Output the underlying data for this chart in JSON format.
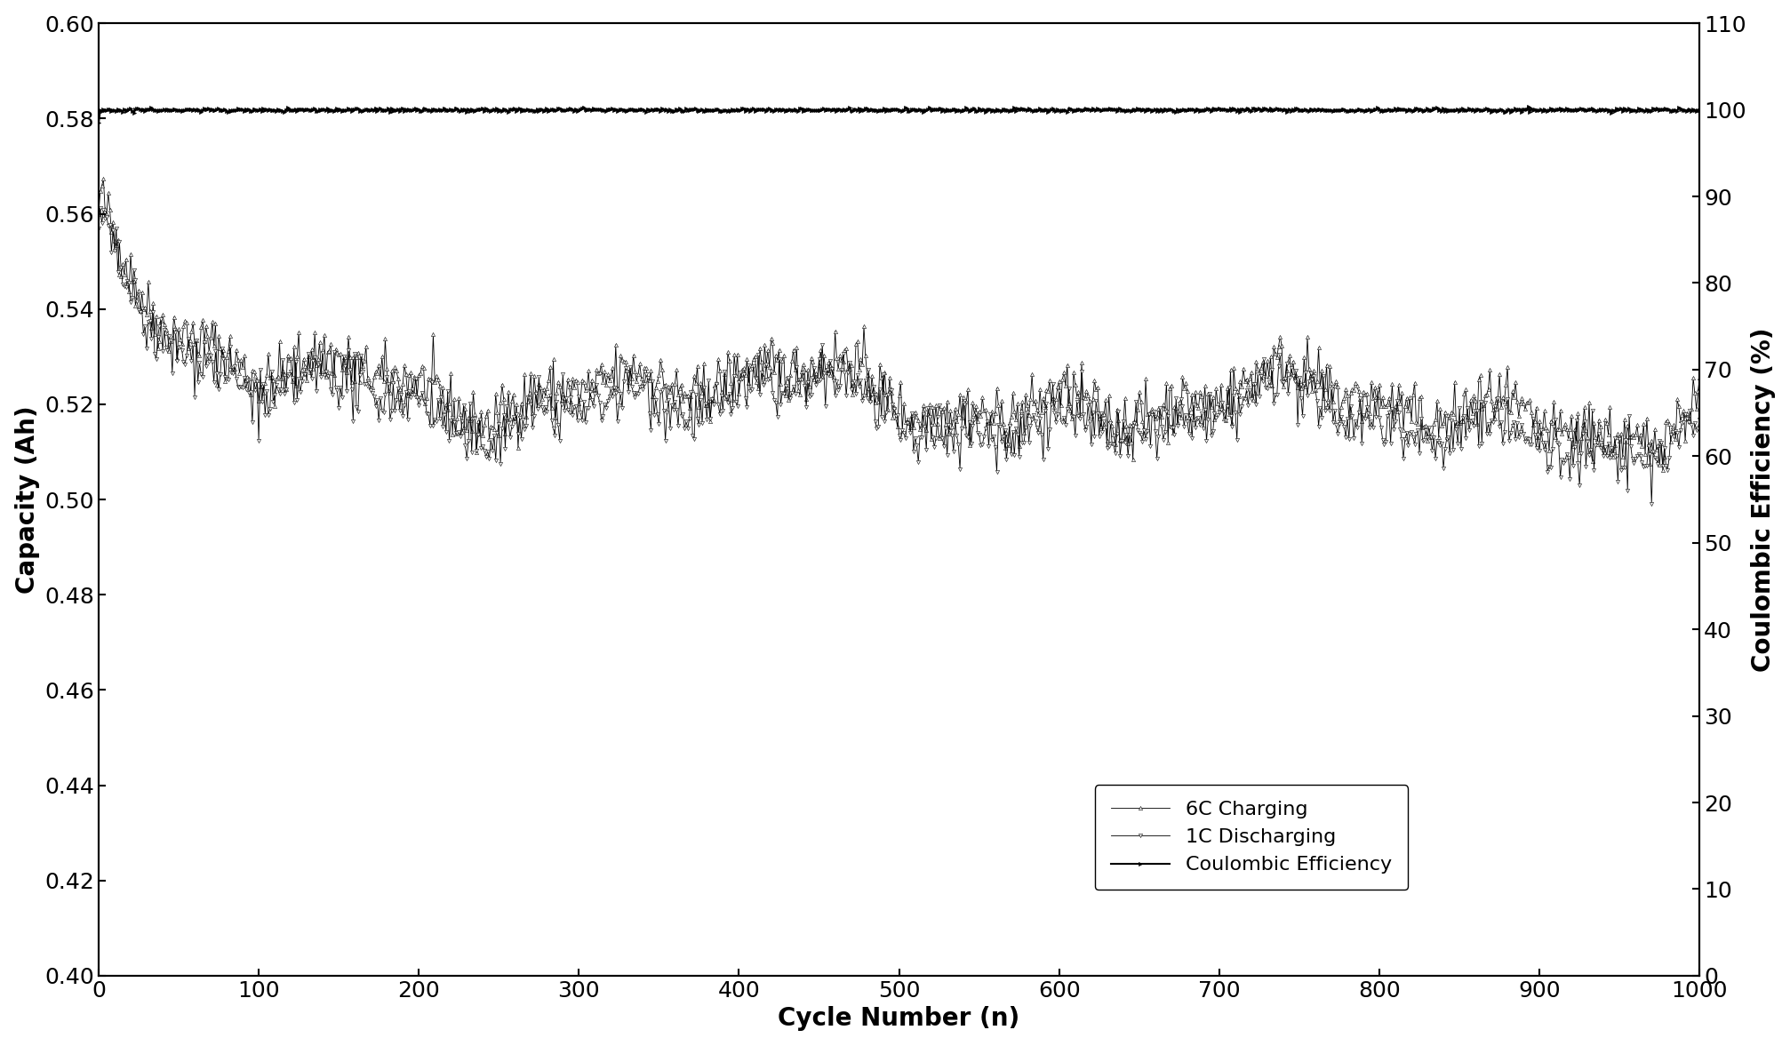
{
  "xlabel": "Cycle Number (n)",
  "ylabel_left": "Capacity (Ah)",
  "ylabel_right": "Coulombic Efficiency (%)",
  "legend_labels": [
    "6C Charging",
    "1C Discharging",
    "Coulombic Efficiency"
  ],
  "xlim": [
    0,
    1000
  ],
  "ylim_left": [
    0.4,
    0.6
  ],
  "ylim_right": [
    0,
    110
  ],
  "xticks": [
    0,
    100,
    200,
    300,
    400,
    500,
    600,
    700,
    800,
    900,
    1000
  ],
  "yticks_left": [
    0.4,
    0.42,
    0.44,
    0.46,
    0.48,
    0.5,
    0.52,
    0.54,
    0.56,
    0.58,
    0.6
  ],
  "yticks_right": [
    0,
    10,
    20,
    30,
    40,
    50,
    60,
    70,
    80,
    90,
    100,
    110
  ],
  "line_color": "#000000",
  "bg_color": "#ffffff",
  "xlabel_fontsize": 20,
  "ylabel_fontsize": 20,
  "tick_fontsize": 18,
  "legend_fontsize": 16,
  "linewidth": 0.6,
  "markersize": 3,
  "seed": 42
}
